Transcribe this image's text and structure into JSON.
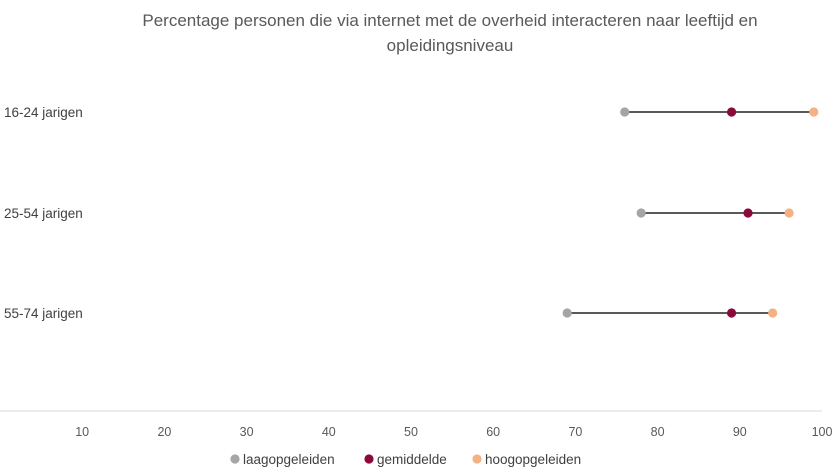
{
  "chart_data": {
    "type": "dot",
    "title_lines": [
      "Percentage personen die via internet met de overheid interacteren naar leeftijd en",
      "opleidingsniveau"
    ],
    "categories": [
      "16-24 jarigen",
      "25-54 jarigen",
      "55-74 jarigen"
    ],
    "series": [
      {
        "name": "laagopgeleiden",
        "color": "#a5a5a5",
        "values": [
          76,
          78,
          69
        ]
      },
      {
        "name": "gemiddelde",
        "color": "#8b0a3c",
        "values": [
          89,
          91,
          89
        ]
      },
      {
        "name": "hoogopgeleiden",
        "color": "#f4b183",
        "values": [
          99,
          96,
          94
        ]
      }
    ],
    "x_ticks": [
      10,
      20,
      30,
      40,
      50,
      60,
      70,
      80,
      90,
      100
    ],
    "xlim": [
      0,
      100
    ],
    "range_line_color": "#595959",
    "grid": false,
    "legend_position": "bottom"
  }
}
